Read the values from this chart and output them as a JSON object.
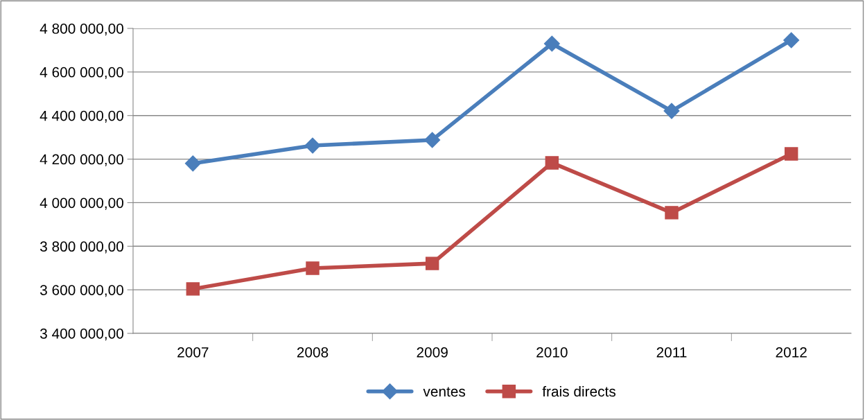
{
  "chart_data": {
    "type": "line",
    "categories": [
      "2007",
      "2008",
      "2009",
      "2010",
      "2011",
      "2012"
    ],
    "series": [
      {
        "name": "ventes",
        "color": "#4a7ebb",
        "marker": "diamond",
        "values": [
          4180000,
          4262000,
          4288000,
          4730000,
          4421000,
          4746000
        ]
      },
      {
        "name": "frais directs",
        "color": "#be4b48",
        "marker": "square",
        "values": [
          3604000,
          3699000,
          3721000,
          4183000,
          3954000,
          4224000
        ]
      }
    ],
    "ylim": [
      3400000,
      4800000
    ],
    "yticks": [
      {
        "value": 3400000,
        "label": "3 400 000,00"
      },
      {
        "value": 3600000,
        "label": "3 600 000,00"
      },
      {
        "value": 3800000,
        "label": "3 800 000,00"
      },
      {
        "value": 4000000,
        "label": "4 000 000,00"
      },
      {
        "value": 4200000,
        "label": "4 200 000,00"
      },
      {
        "value": 4400000,
        "label": "4 400 000,00"
      },
      {
        "value": 4600000,
        "label": "4 600 000,00"
      },
      {
        "value": 4800000,
        "label": "4 800 000,00"
      }
    ],
    "grid": "y",
    "legend": "bottom",
    "line_style": "solid"
  }
}
